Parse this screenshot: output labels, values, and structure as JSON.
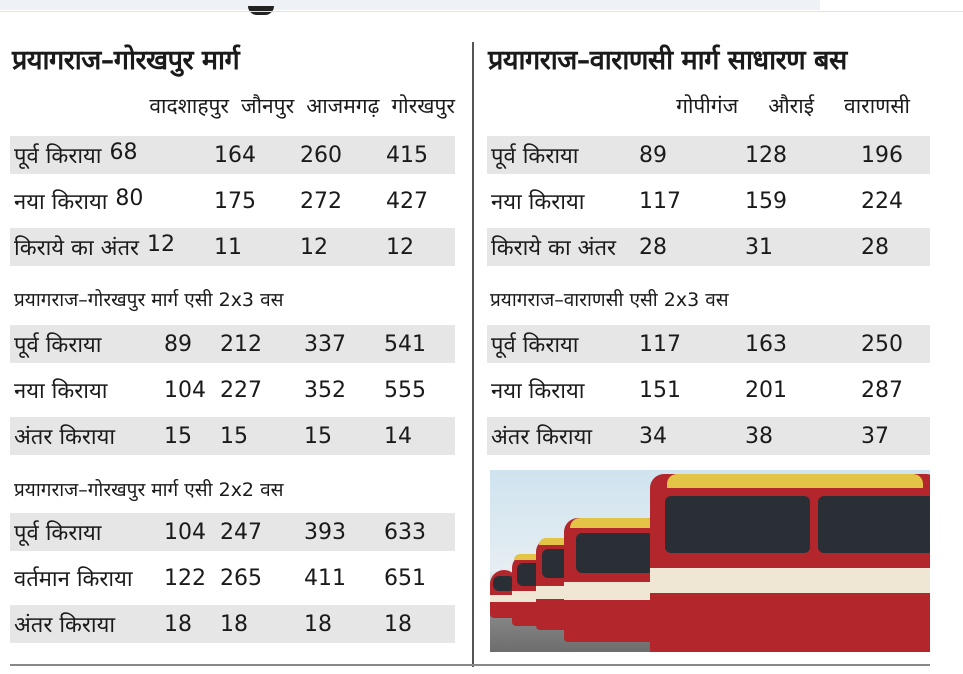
{
  "left": {
    "title": "प्रयागराज–गोरखपुर मार्ग",
    "columns": [
      "वादशाहपुर",
      "जौनपुर",
      "आजमगढ़",
      "गोरखपुर"
    ],
    "general": [
      {
        "label": "पूर्व किराया",
        "values": [
          "68",
          "164",
          "260",
          "415"
        ]
      },
      {
        "label": "नया किराया",
        "values": [
          "80",
          "175",
          "272",
          "427"
        ]
      },
      {
        "label": "किराये का अंतर",
        "values": [
          "12",
          "11",
          "12",
          "12"
        ]
      }
    ],
    "ac2x3_title": "प्रयागराज–गोरखपुर मार्ग एसी 2x3 वस",
    "ac2x3": [
      {
        "label": "पूर्व किराया",
        "values": [
          "89",
          "212",
          "337",
          "541"
        ]
      },
      {
        "label": "नया किराया",
        "values": [
          "104",
          "227",
          "352",
          "555"
        ]
      },
      {
        "label": "अंतर किराया",
        "values": [
          "15",
          "15",
          "15",
          "14"
        ]
      }
    ],
    "ac2x2_title": "प्रयागराज–गोरखपुर मार्ग एसी 2x2 वस",
    "ac2x2": [
      {
        "label": "पूर्व किराया",
        "values": [
          "104",
          "247",
          "393",
          "633"
        ]
      },
      {
        "label": "वर्तमान किराया",
        "values": [
          "122",
          "265",
          "411",
          "651"
        ]
      },
      {
        "label": "अंतर किराया",
        "values": [
          "18",
          "18",
          "18",
          "18"
        ]
      }
    ]
  },
  "right": {
    "title": "प्रयागराज–वाराणसी मार्ग साधारण बस",
    "columns": [
      "गोपीगंज",
      "औराई",
      "वाराणसी"
    ],
    "general": [
      {
        "label": "पूर्व किराया",
        "values": [
          "89",
          "128",
          "196"
        ]
      },
      {
        "label": "नया किराया",
        "values": [
          "117",
          "159",
          "224"
        ]
      },
      {
        "label": "किराये का अंतर",
        "values": [
          "28",
          "31",
          "28"
        ]
      }
    ],
    "ac2x3_title": "प्रयागराज–वाराणसी एसी 2x3 वस",
    "ac2x3": [
      {
        "label": "पूर्व किराया",
        "values": [
          "117",
          "163",
          "250"
        ]
      },
      {
        "label": "नया किराया",
        "values": [
          "151",
          "201",
          "287"
        ]
      },
      {
        "label": "अंतर किराया",
        "values": [
          "34",
          "38",
          "37"
        ]
      }
    ]
  }
}
